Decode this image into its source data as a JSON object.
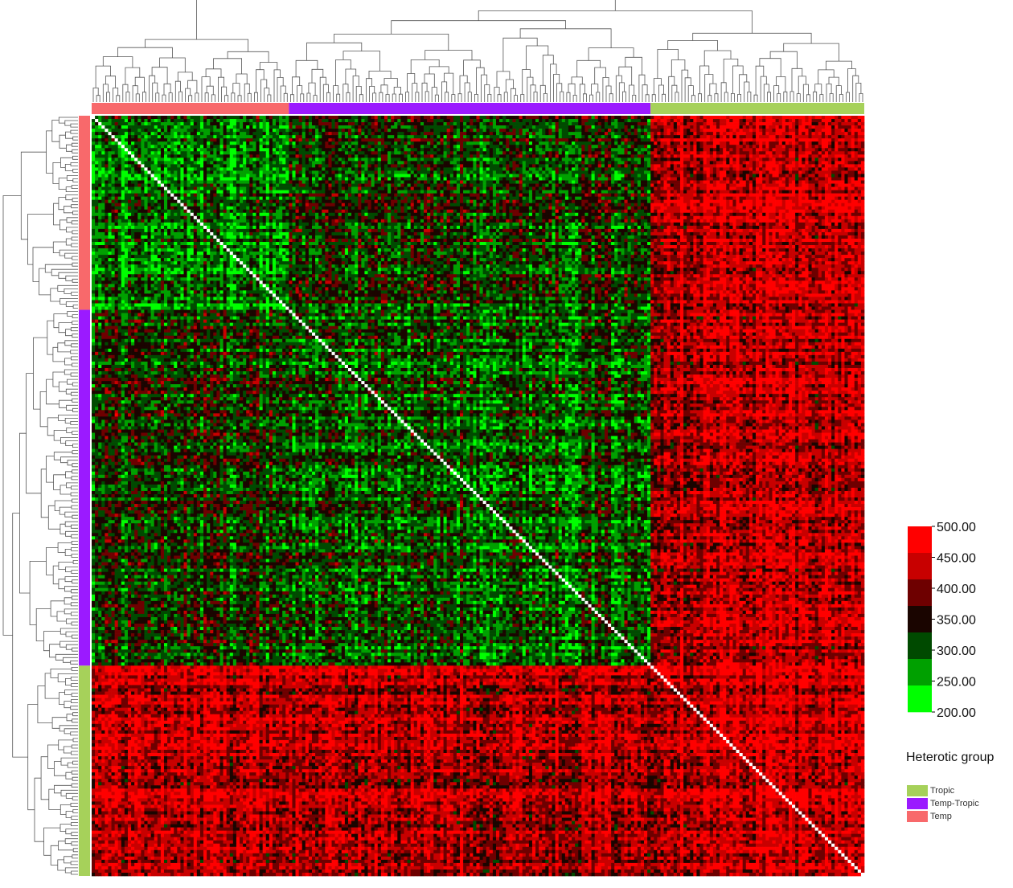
{
  "chart_data": {
    "type": "heatmap",
    "title": "",
    "color_scale": {
      "min": 200,
      "max": 500,
      "breaks": [
        500,
        450,
        400,
        350,
        300,
        250,
        200
      ],
      "tick_labels": [
        "500.00",
        "450.00",
        "400.00",
        "350.00",
        "300.00",
        "250.00",
        "200.00"
      ],
      "bin_colors": [
        "#ff0000",
        "#c80000",
        "#6e0000",
        "#1a0500",
        "#004a00",
        "#00a000",
        "#00ff00"
      ]
    },
    "groups": [
      {
        "name": "Temp",
        "color": "#f8696b",
        "count": 60
      },
      {
        "name": "Temp-Tropic",
        "color": "#9b1aff",
        "count": 110
      },
      {
        "name": "Tropic",
        "color": "#a6d15a",
        "count": 65
      }
    ],
    "block_mean_values": [
      [
        255,
        300,
        430
      ],
      [
        300,
        275,
        420
      ],
      [
        430,
        420,
        440
      ]
    ],
    "legend_title": "Heterotic group",
    "legend_order": [
      "Tropic",
      "Temp-Tropic",
      "Temp"
    ],
    "dendrograms": {
      "top": true,
      "left": true
    }
  }
}
